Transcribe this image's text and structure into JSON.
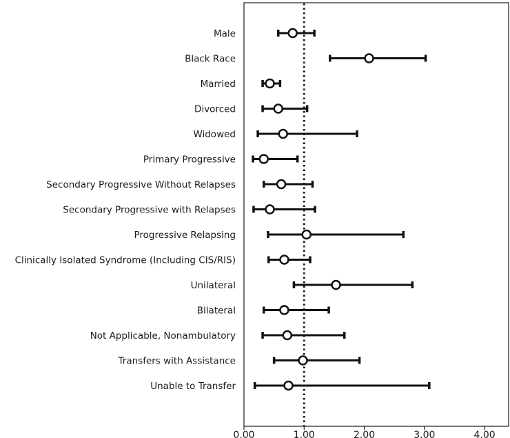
{
  "chart_data": {
    "type": "forest",
    "title": "",
    "xlabel": "",
    "ylabel": "",
    "xlim": [
      0,
      4.4
    ],
    "xticks": [
      "0.00",
      "1.00",
      "2.00",
      "3.00",
      "4.00"
    ],
    "reference_line": 1.0,
    "rows": [
      {
        "label": "Male",
        "estimate": 0.81,
        "low": 0.57,
        "high": 1.17
      },
      {
        "label": "Black Race",
        "estimate": 2.08,
        "low": 1.43,
        "high": 3.02
      },
      {
        "label": "Married",
        "estimate": 0.43,
        "low": 0.31,
        "high": 0.6
      },
      {
        "label": "Divorced",
        "estimate": 0.57,
        "low": 0.31,
        "high": 1.05
      },
      {
        "label": "Widowed",
        "estimate": 0.65,
        "low": 0.23,
        "high": 1.88
      },
      {
        "label": "Primary Progressive",
        "estimate": 0.33,
        "low": 0.15,
        "high": 0.89
      },
      {
        "label": "Secondary Progressive Without Relapses",
        "estimate": 0.62,
        "low": 0.33,
        "high": 1.14
      },
      {
        "label": "Secondary Progressive with Relapses",
        "estimate": 0.43,
        "low": 0.16,
        "high": 1.18
      },
      {
        "label": "Progressive Relapsing",
        "estimate": 1.04,
        "low": 0.4,
        "high": 2.65
      },
      {
        "label": "Clinically Isolated Syndrome (Including CIS/RIS)",
        "estimate": 0.67,
        "low": 0.41,
        "high": 1.1
      },
      {
        "label": "Unilateral",
        "estimate": 1.53,
        "low": 0.83,
        "high": 2.8
      },
      {
        "label": "Bilateral",
        "estimate": 0.67,
        "low": 0.33,
        "high": 1.41
      },
      {
        "label": "Not Applicable, Nonambulatory",
        "estimate": 0.72,
        "low": 0.31,
        "high": 1.67
      },
      {
        "label": "Transfers with Assistance",
        "estimate": 0.98,
        "low": 0.5,
        "high": 1.92
      },
      {
        "label": "Unable to Transfer",
        "estimate": 0.74,
        "low": 0.18,
        "high": 3.08
      }
    ]
  }
}
